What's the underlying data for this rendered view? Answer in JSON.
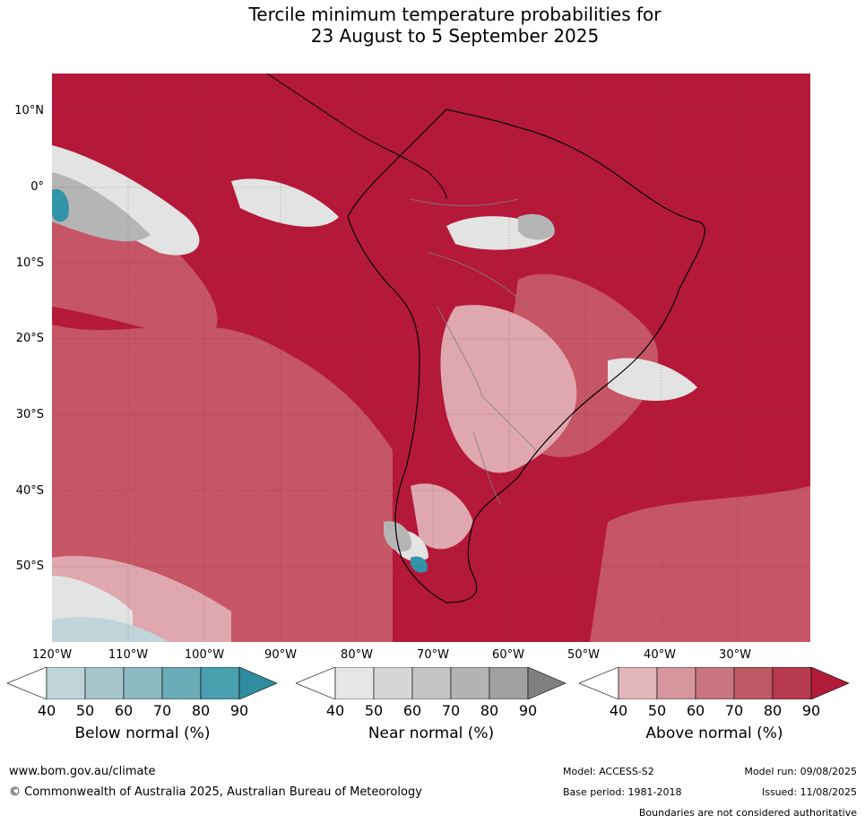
{
  "title": {
    "line1": "Tercile minimum temperature probabilities for",
    "line2": "23 August to 5 September 2025"
  },
  "map": {
    "lat_labels": [
      "10°N",
      "0°",
      "10°S",
      "20°S",
      "30°S",
      "40°S",
      "50°S"
    ],
    "lon_labels": [
      "120°W",
      "110°W",
      "100°W",
      "90°W",
      "80°W",
      "70°W",
      "60°W",
      "50°W",
      "40°W",
      "30°W"
    ],
    "colors": {
      "above_dominant": "#b5193a",
      "above_mid": "#c65565",
      "above_light": "#dfa7ae",
      "near_light": "#e3e3e3",
      "near_mid": "#b5b5b5",
      "below_dark": "#3294a9",
      "coastline": "#000000",
      "borders": "#808080"
    }
  },
  "colorbars": [
    {
      "label": "Below normal (%)",
      "ticks": [
        "40",
        "50",
        "60",
        "70",
        "80",
        "90"
      ],
      "colors": [
        "#ffffff",
        "#bfd5da",
        "#a6c6cc",
        "#8cb8c0",
        "#6aacb8",
        "#4ba0b0",
        "#2e8ea0"
      ]
    },
    {
      "label": "Near normal (%)",
      "ticks": [
        "40",
        "50",
        "60",
        "70",
        "80",
        "90"
      ],
      "colors": [
        "#ffffff",
        "#e6e6e6",
        "#d6d6d6",
        "#c4c4c4",
        "#b3b3b3",
        "#a1a1a1",
        "#808080"
      ]
    },
    {
      "label": "Above normal (%)",
      "ticks": [
        "40",
        "50",
        "60",
        "70",
        "80",
        "90"
      ],
      "colors": [
        "#ffffff",
        "#e2b6bb",
        "#d6969e",
        "#c97580",
        "#bd5865",
        "#b83a4e",
        "#b01c37"
      ]
    }
  ],
  "footer": {
    "url": "www.bom.gov.au/climate",
    "copyright": "© Commonwealth of Australia 2025, Australian Bureau of Meteorology",
    "model": "Model: ACCESS-S2",
    "model_run": "Model run: 09/08/2025",
    "base_period": "Base period: 1981-2018",
    "issued": "Issued: 11/08/2025",
    "disclaimer": "Boundaries are not considered authoritative"
  }
}
